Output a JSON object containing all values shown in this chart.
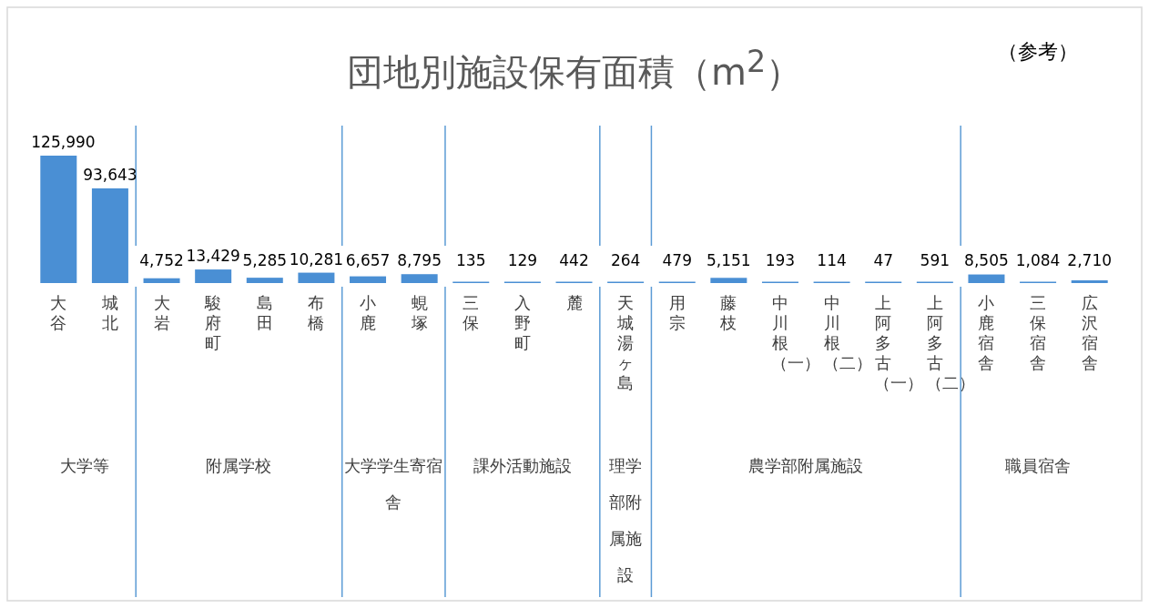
{
  "chart_data": {
    "type": "bar",
    "title": "団地別施設保有面積（m$^{2}$）",
    "annotations": [
      "大学等",
      "附属学校",
      "大学学生寄宿舎",
      "課外活動施設",
      "理学部附属施設",
      "農学部附属施設",
      "職員宿舎",
      "（参考）"
    ],
    "categories": [
      "大谷",
      "城北",
      "大岩",
      "駿府町",
      "島田",
      "布橋",
      "小鹿",
      "蜆塚",
      "三保",
      "入野町",
      "麓",
      "天城湯ヶ島",
      "用宗",
      "藤枝",
      "中川根（一）",
      "中川根（二）",
      "上阿多古（一）",
      "上阿多古（二）",
      "小鹿宿舎",
      "三保宿舎",
      "広沢宿舎"
    ],
    "values": [
      125990,
      93643,
      4752,
      13429,
      5285,
      10281,
      6657,
      8795,
      135,
      129,
      442,
      264,
      479,
      5151,
      193,
      114,
      47,
      591,
      8505,
      1084,
      2710
    ],
    "value_labels": [
      "125,990",
      "93,643",
      "4,752",
      "13,429",
      "5,285",
      "10,281",
      "6,657",
      "8,795",
      "135",
      "129",
      "442",
      "264",
      "479",
      "5,151",
      "193",
      "114",
      "47",
      "591",
      "8,505",
      "1,084",
      "2,710"
    ],
    "color": "#4a8fd4",
    "relative": false
  }
}
